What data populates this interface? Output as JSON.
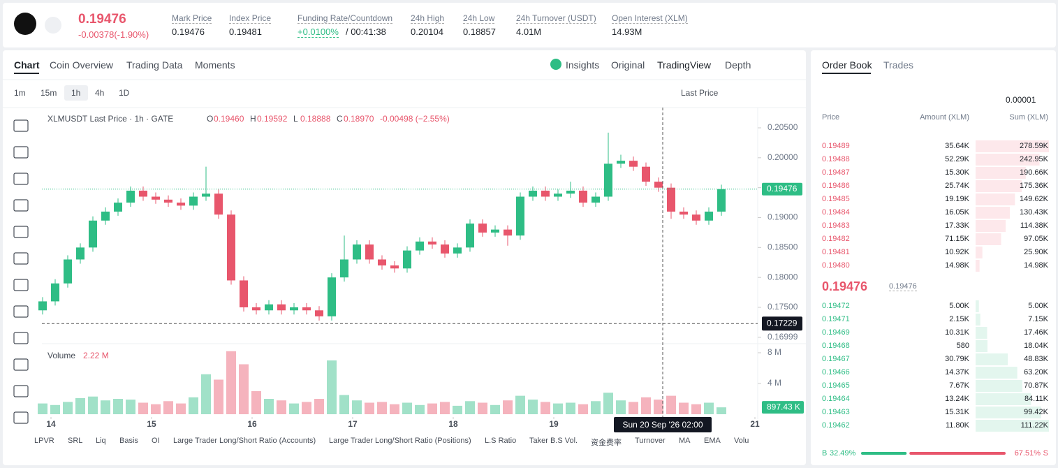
{
  "header": {
    "price": "0.19476",
    "change": "-0.00378(-1.90%)",
    "stats": [
      {
        "label": "Mark Price",
        "value": "0.19476"
      },
      {
        "label": "Index Price",
        "value": "0.19481"
      },
      {
        "label": "Funding Rate/Countdown",
        "value": "+0.0100%",
        "extra": "/ 00:41:38"
      },
      {
        "label": "24h High",
        "value": "0.20104"
      },
      {
        "label": "24h Low",
        "value": "0.18857"
      },
      {
        "label": "24h Turnover (USDT)",
        "value": "4.01M"
      },
      {
        "label": "Open Interest (XLM)",
        "value": "14.93M"
      }
    ]
  },
  "chart_tabs": [
    "Chart",
    "Coin Overview",
    "Trading Data",
    "Moments"
  ],
  "view_tabs": [
    "Insights",
    "Original",
    "TradingView",
    "Depth"
  ],
  "intervals": [
    "1m",
    "15m",
    "1h",
    "4h",
    "1D"
  ],
  "price_source": "Last Price",
  "chart_data": {
    "type": "candlestick",
    "legend": "XLMUSDT Last Price · 1h · GATE",
    "ohlc": [
      {
        "key": "O",
        "value": "0.19460"
      },
      {
        "key": "H",
        "value": "0.19592"
      },
      {
        "key": "L",
        "value": "0.18888"
      },
      {
        "key": "C",
        "value": "0.18970"
      },
      {
        "key": "",
        "value": "-0.00498 (−2.55%)"
      }
    ],
    "up_color": "#2ebd85",
    "down_color": "#e8566c",
    "x": [
      -2,
      1,
      4,
      7,
      10,
      13,
      16,
      19,
      22,
      25,
      28,
      31,
      34,
      37,
      40,
      43,
      46,
      49,
      52,
      55,
      58,
      61,
      64,
      67,
      70,
      73,
      76,
      79,
      82,
      85,
      88,
      91,
      94,
      97,
      100,
      103,
      106,
      109,
      112,
      115,
      118,
      121,
      124,
      127,
      130,
      133,
      136,
      139,
      142,
      145,
      148,
      151,
      154,
      157,
      160
    ],
    "candles": [
      [
        0.1745,
        0.1767,
        0.1738,
        0.176
      ],
      [
        0.176,
        0.1797,
        0.1753,
        0.179
      ],
      [
        0.179,
        0.1837,
        0.1783,
        0.183
      ],
      [
        0.183,
        0.1857,
        0.1823,
        0.185
      ],
      [
        0.185,
        0.1902,
        0.1843,
        0.1895
      ],
      [
        0.1895,
        0.1917,
        0.1888,
        0.191
      ],
      [
        0.191,
        0.1932,
        0.1903,
        0.1925
      ],
      [
        0.1925,
        0.1952,
        0.1918,
        0.1945
      ],
      [
        0.1945,
        0.1952,
        0.1928,
        0.1935
      ],
      [
        0.1935,
        0.1942,
        0.1923,
        0.193
      ],
      [
        0.193,
        0.1937,
        0.1918,
        0.1925
      ],
      [
        0.1925,
        0.1932,
        0.1913,
        0.192
      ],
      [
        0.192,
        0.1942,
        0.1913,
        0.1935
      ],
      [
        0.1935,
        0.1985,
        0.1928,
        0.194
      ],
      [
        0.194,
        0.1947,
        0.1898,
        0.1905
      ],
      [
        0.1905,
        0.1912,
        0.1788,
        0.1795
      ],
      [
        0.1795,
        0.1802,
        0.1743,
        0.175
      ],
      [
        0.175,
        0.1757,
        0.1738,
        0.1745
      ],
      [
        0.1745,
        0.1762,
        0.1738,
        0.1755
      ],
      [
        0.1755,
        0.1762,
        0.1738,
        0.1745
      ],
      [
        0.1745,
        0.1757,
        0.1738,
        0.175
      ],
      [
        0.175,
        0.1757,
        0.1738,
        0.1745
      ],
      [
        0.1745,
        0.1752,
        0.1728,
        0.1735
      ],
      [
        0.1735,
        0.1807,
        0.1728,
        0.18
      ],
      [
        0.18,
        0.187,
        0.1793,
        0.183
      ],
      [
        0.183,
        0.1862,
        0.1823,
        0.1855
      ],
      [
        0.1855,
        0.1862,
        0.1823,
        0.183
      ],
      [
        0.183,
        0.1837,
        0.1813,
        0.182
      ],
      [
        0.182,
        0.1827,
        0.1808,
        0.1815
      ],
      [
        0.1815,
        0.1852,
        0.1808,
        0.1845
      ],
      [
        0.1845,
        0.1867,
        0.1838,
        0.186
      ],
      [
        0.186,
        0.1867,
        0.1848,
        0.1855
      ],
      [
        0.1855,
        0.1862,
        0.1833,
        0.184
      ],
      [
        0.184,
        0.1857,
        0.1833,
        0.185
      ],
      [
        0.185,
        0.1897,
        0.1843,
        0.189
      ],
      [
        0.189,
        0.1897,
        0.1868,
        0.1875
      ],
      [
        0.1875,
        0.1887,
        0.1868,
        0.188
      ],
      [
        0.188,
        0.1887,
        0.1853,
        0.187
      ],
      [
        0.187,
        0.1942,
        0.1863,
        0.1935
      ],
      [
        0.1935,
        0.1952,
        0.1928,
        0.1945
      ],
      [
        0.1945,
        0.1952,
        0.1928,
        0.1935
      ],
      [
        0.1935,
        0.1947,
        0.1928,
        0.194
      ],
      [
        0.194,
        0.196,
        0.1933,
        0.1945
      ],
      [
        0.1945,
        0.1952,
        0.1918,
        0.1925
      ],
      [
        0.1925,
        0.1942,
        0.1918,
        0.1935
      ],
      [
        0.1935,
        0.2042,
        0.1928,
        0.199
      ],
      [
        0.199,
        0.2005,
        0.1983,
        0.1995
      ],
      [
        0.1995,
        0.2002,
        0.1978,
        0.1985
      ],
      [
        0.1985,
        0.1992,
        0.1953,
        0.196
      ],
      [
        0.196,
        0.1967,
        0.1943,
        0.195
      ],
      [
        0.195,
        0.1957,
        0.1898,
        0.191
      ],
      [
        0.191,
        0.1917,
        0.1898,
        0.1905
      ],
      [
        0.1905,
        0.1912,
        0.1888,
        0.1895
      ],
      [
        0.1895,
        0.1917,
        0.1888,
        0.191
      ],
      [
        0.191,
        0.1955,
        0.1903,
        0.19476
      ]
    ],
    "volume": [
      1.4,
      1.2,
      1.6,
      2.1,
      2.3,
      1.8,
      2.0,
      1.9,
      1.5,
      1.3,
      1.7,
      1.4,
      2.2,
      5.2,
      4.5,
      8.2,
      6.5,
      3.0,
      2.0,
      1.8,
      1.4,
      1.6,
      2.0,
      7.0,
      2.5,
      1.8,
      1.5,
      1.6,
      1.3,
      1.5,
      1.2,
      1.4,
      1.6,
      1.1,
      1.7,
      1.5,
      1.2,
      1.8,
      2.4,
      1.9,
      1.6,
      1.4,
      1.5,
      1.3,
      1.7,
      2.8,
      1.8,
      1.6,
      2.2,
      1.9,
      2.4,
      1.5,
      1.3,
      1.5,
      0.897
    ],
    "volume_title": "Volume",
    "volume_value": "2.22 M",
    "xlim": [
      -2.2,
      168.3
    ],
    "xticks": [
      {
        "value": 0,
        "label": "14"
      },
      {
        "value": 24,
        "label": "15"
      },
      {
        "value": 48,
        "label": "16"
      },
      {
        "value": 72,
        "label": "17"
      },
      {
        "value": 96,
        "label": "18"
      },
      {
        "value": 120,
        "label": "19"
      },
      {
        "value": 168,
        "label": "21"
      }
    ],
    "ylim": [
      0.1686,
      0.2065
    ],
    "yticks": [
      {
        "value": 0.205,
        "label": "0.20500"
      },
      {
        "value": 0.2,
        "label": "0.20000"
      },
      {
        "value": 0.195,
        "label": "0.19500"
      },
      {
        "value": 0.19,
        "label": "0.19000"
      },
      {
        "value": 0.185,
        "label": "0.18500"
      },
      {
        "value": 0.18,
        "label": "0.18000"
      },
      {
        "value": 0.175,
        "label": "0.17500"
      },
      {
        "value": 0.16999,
        "label": "0.16999"
      }
    ],
    "last_price": {
      "value": 0.19476,
      "label": "0.19476"
    },
    "crosshair": {
      "x": 146,
      "y": 0.17229,
      "x_label": "Sun 20 Sep '26   02:00",
      "y_label": "0.17229"
    },
    "vlim": [
      0,
      8.9
    ],
    "vticks": [
      {
        "value": 8,
        "label": "8 M"
      },
      {
        "value": 4,
        "label": "4 M"
      }
    ],
    "last_volume": {
      "value": 0.897,
      "label": "897.43 K"
    }
  },
  "indicators": [
    "LPVR",
    "SRL",
    "Liq",
    "Basis",
    "OI",
    "Large Trader Long/Short Ratio (Accounts)",
    "Large Trader Long/Short Ratio (Positions)",
    "L.S Ratio",
    "Taker B.S Vol.",
    "资金费率",
    "Turnover",
    "MA",
    "EMA",
    "Volu"
  ],
  "order_book": {
    "tabs": [
      "Order Book",
      "Trades"
    ],
    "precision": "0.00001",
    "columns": [
      "Price",
      "Amount (XLM)",
      "Sum (XLM)"
    ],
    "asks": [
      [
        "0.19489",
        "35.64K",
        "278.59K"
      ],
      [
        "0.19488",
        "52.29K",
        "242.95K"
      ],
      [
        "0.19487",
        "15.30K",
        "190.66K"
      ],
      [
        "0.19486",
        "25.74K",
        "175.36K"
      ],
      [
        "0.19485",
        "19.19K",
        "149.62K"
      ],
      [
        "0.19484",
        "16.05K",
        "130.43K"
      ],
      [
        "0.19483",
        "17.33K",
        "114.38K"
      ],
      [
        "0.19482",
        "71.15K",
        "97.05K"
      ],
      [
        "0.19481",
        "10.92K",
        "25.90K"
      ],
      [
        "0.19480",
        "14.98K",
        "14.98K"
      ]
    ],
    "mid": "0.19476",
    "mid_mark": "0.19476",
    "bids": [
      [
        "0.19472",
        "5.00K",
        "5.00K"
      ],
      [
        "0.19471",
        "2.15K",
        "7.15K"
      ],
      [
        "0.19469",
        "10.31K",
        "17.46K"
      ],
      [
        "0.19468",
        "580",
        "18.04K"
      ],
      [
        "0.19467",
        "30.79K",
        "48.83K"
      ],
      [
        "0.19466",
        "14.37K",
        "63.20K"
      ],
      [
        "0.19465",
        "7.67K",
        "70.87K"
      ],
      [
        "0.19464",
        "13.24K",
        "84.11K"
      ],
      [
        "0.19463",
        "15.31K",
        "99.42K"
      ],
      [
        "0.19462",
        "11.80K",
        "111.22K"
      ]
    ],
    "buy": {
      "label": "B",
      "value": "32.49%"
    },
    "sell": {
      "label": "S",
      "value": "67.51%"
    }
  }
}
